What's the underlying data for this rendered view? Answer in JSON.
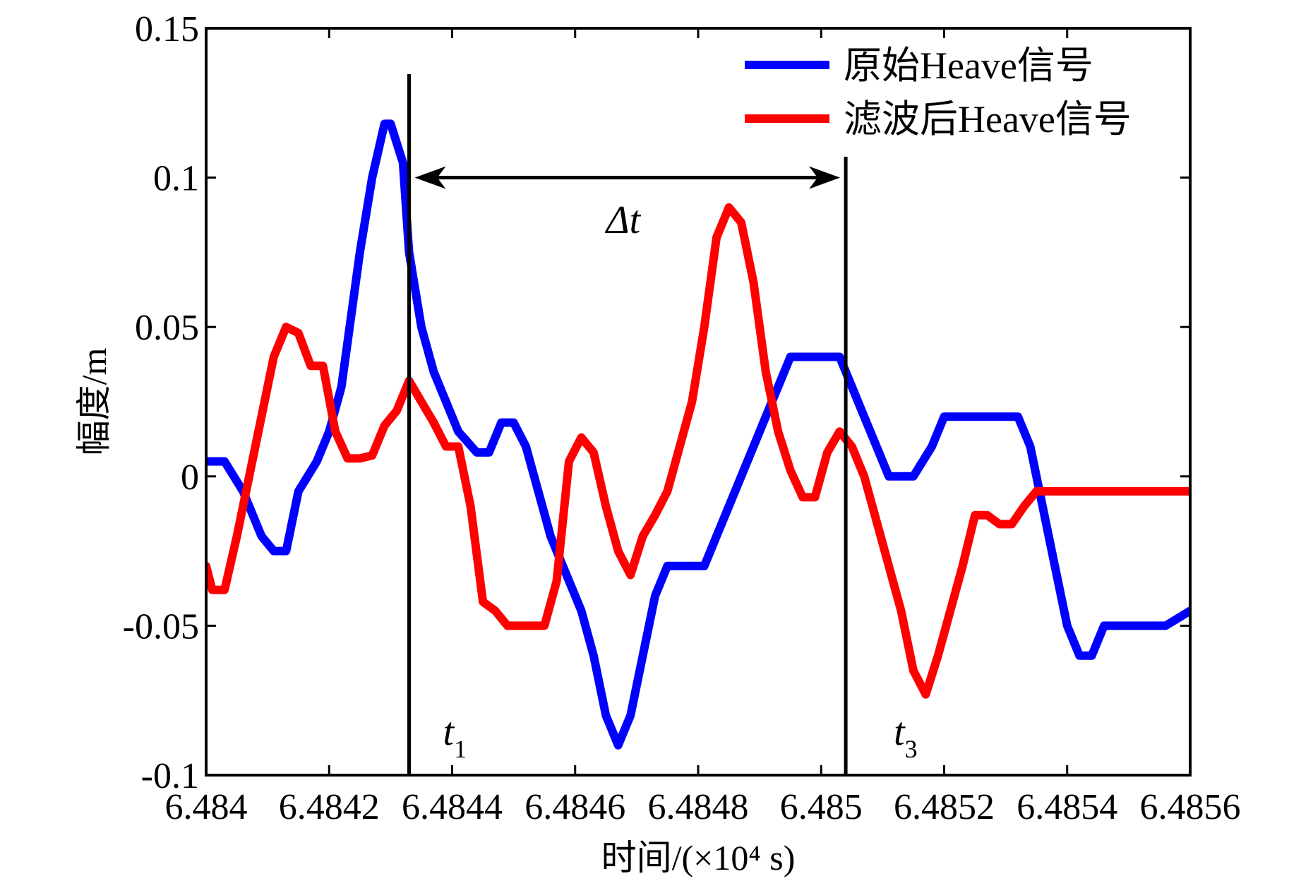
{
  "chart_data": {
    "type": "line",
    "title": "",
    "xlabel": "时间/(×10⁴ s)",
    "ylabel": "幅度/m",
    "xlim": [
      6.484,
      6.4856
    ],
    "ylim": [
      -0.1,
      0.15
    ],
    "xticks": [
      6.484,
      6.4842,
      6.4844,
      6.4846,
      6.4848,
      6.485,
      6.4852,
      6.4854,
      6.4856
    ],
    "xtick_labels": [
      "6.484",
      "6.4842",
      "6.4844",
      "6.4846",
      "6.4848",
      "6.485",
      "6.4852",
      "6.4854",
      "6.4856"
    ],
    "yticks": [
      -0.1,
      -0.05,
      0,
      0.05,
      0.1,
      0.15
    ],
    "ytick_labels": [
      "-0.1",
      "-0.05",
      "0",
      "0.05",
      "0.1",
      "0.15"
    ],
    "grid": false,
    "legend_position": "top-right",
    "series": [
      {
        "name": "原始Heave信号",
        "color": "#0000ff",
        "x": [
          6.484,
          6.48403,
          6.48406,
          6.48409,
          6.48411,
          6.48413,
          6.48415,
          6.48418,
          6.4842,
          6.48422,
          6.48423,
          6.48425,
          6.48427,
          6.48429,
          6.4843,
          6.48432,
          6.48433,
          6.48435,
          6.48437,
          6.48439,
          6.48441,
          6.48444,
          6.48446,
          6.48448,
          6.4845,
          6.48452,
          6.48454,
          6.48456,
          6.48458,
          6.48461,
          6.48463,
          6.48465,
          6.48467,
          6.48469,
          6.48471,
          6.48473,
          6.48475,
          6.48477,
          6.48479,
          6.48481,
          6.48483,
          6.48485,
          6.48487,
          6.48489,
          6.48491,
          6.48493,
          6.48495,
          6.48497,
          6.48499,
          6.48501,
          6.48503,
          6.48505,
          6.48507,
          6.48509,
          6.48511,
          6.48513,
          6.48515,
          6.48518,
          6.4852,
          6.48522,
          6.48524,
          6.48526,
          6.48528,
          6.4853,
          6.48532,
          6.48534,
          6.48536,
          6.48538,
          6.4854,
          6.48542,
          6.48544,
          6.48546,
          6.48548,
          6.4855,
          6.48552,
          6.48554,
          6.48556,
          6.4856
        ],
        "y": [
          0.005,
          0.005,
          -0.005,
          -0.02,
          -0.025,
          -0.025,
          -0.005,
          0.005,
          0.015,
          0.03,
          0.045,
          0.075,
          0.1,
          0.118,
          0.118,
          0.105,
          0.075,
          0.05,
          0.035,
          0.025,
          0.015,
          0.008,
          0.008,
          0.018,
          0.018,
          0.01,
          -0.005,
          -0.02,
          -0.03,
          -0.045,
          -0.06,
          -0.08,
          -0.09,
          -0.08,
          -0.06,
          -0.04,
          -0.03,
          -0.03,
          -0.03,
          -0.03,
          -0.02,
          -0.01,
          0.0,
          0.01,
          0.02,
          0.03,
          0.04,
          0.04,
          0.04,
          0.04,
          0.04,
          0.03,
          0.02,
          0.01,
          0.0,
          0.0,
          0.0,
          0.01,
          0.02,
          0.02,
          0.02,
          0.02,
          0.02,
          0.02,
          0.02,
          0.01,
          -0.01,
          -0.03,
          -0.05,
          -0.06,
          -0.06,
          -0.05,
          -0.05,
          -0.05,
          -0.05,
          -0.05,
          -0.05,
          -0.045
        ]
      },
      {
        "name": "滤波后Heave信号",
        "color": "#ff0000",
        "x": [
          6.484,
          6.48401,
          6.48403,
          6.48405,
          6.48407,
          6.48409,
          6.48411,
          6.48413,
          6.48415,
          6.48417,
          6.48419,
          6.48421,
          6.48423,
          6.48425,
          6.48427,
          6.48429,
          6.48431,
          6.48433,
          6.48435,
          6.48437,
          6.48439,
          6.48441,
          6.48443,
          6.48445,
          6.48447,
          6.48449,
          6.48451,
          6.48453,
          6.48455,
          6.48457,
          6.48459,
          6.48461,
          6.48463,
          6.48465,
          6.48467,
          6.48469,
          6.48471,
          6.48473,
          6.48475,
          6.48477,
          6.48479,
          6.48481,
          6.48483,
          6.48485,
          6.48487,
          6.48489,
          6.48491,
          6.48493,
          6.48495,
          6.48497,
          6.48499,
          6.48501,
          6.48503,
          6.48505,
          6.48507,
          6.48509,
          6.48511,
          6.48513,
          6.48515,
          6.48517,
          6.48519,
          6.48521,
          6.48523,
          6.48525,
          6.48527,
          6.48529,
          6.48531,
          6.48533,
          6.48535,
          6.48537,
          6.48539,
          6.48541,
          6.48543,
          6.48545,
          6.48547,
          6.48549,
          6.48551,
          6.48553,
          6.48555,
          6.48557,
          6.4856
        ],
        "y": [
          -0.03,
          -0.038,
          -0.038,
          -0.02,
          0.0,
          0.02,
          0.04,
          0.05,
          0.048,
          0.037,
          0.037,
          0.015,
          0.006,
          0.006,
          0.007,
          0.017,
          0.022,
          0.032,
          0.025,
          0.018,
          0.01,
          0.01,
          -0.01,
          -0.042,
          -0.045,
          -0.05,
          -0.05,
          -0.05,
          -0.05,
          -0.035,
          0.005,
          0.013,
          0.008,
          -0.01,
          -0.025,
          -0.033,
          -0.02,
          -0.013,
          -0.005,
          0.01,
          0.025,
          0.05,
          0.08,
          0.09,
          0.085,
          0.065,
          0.035,
          0.015,
          0.002,
          -0.007,
          -0.007,
          0.008,
          0.015,
          0.01,
          0.0,
          -0.015,
          -0.03,
          -0.045,
          -0.065,
          -0.073,
          -0.06,
          -0.045,
          -0.03,
          -0.013,
          -0.013,
          -0.016,
          -0.016,
          -0.01,
          -0.005,
          -0.005,
          -0.005,
          -0.005,
          -0.005,
          -0.005,
          -0.005,
          -0.005,
          -0.005,
          -0.005,
          -0.005,
          -0.005,
          -0.005
        ]
      }
    ],
    "annotations": {
      "delta_t_label": "Δt",
      "t1_main": "t",
      "t1_sub": "1",
      "t3_main": "t",
      "t3_sub": "3",
      "t1_x": 6.48433,
      "t3_x": 6.48504,
      "arrow_y": 0.1
    }
  }
}
